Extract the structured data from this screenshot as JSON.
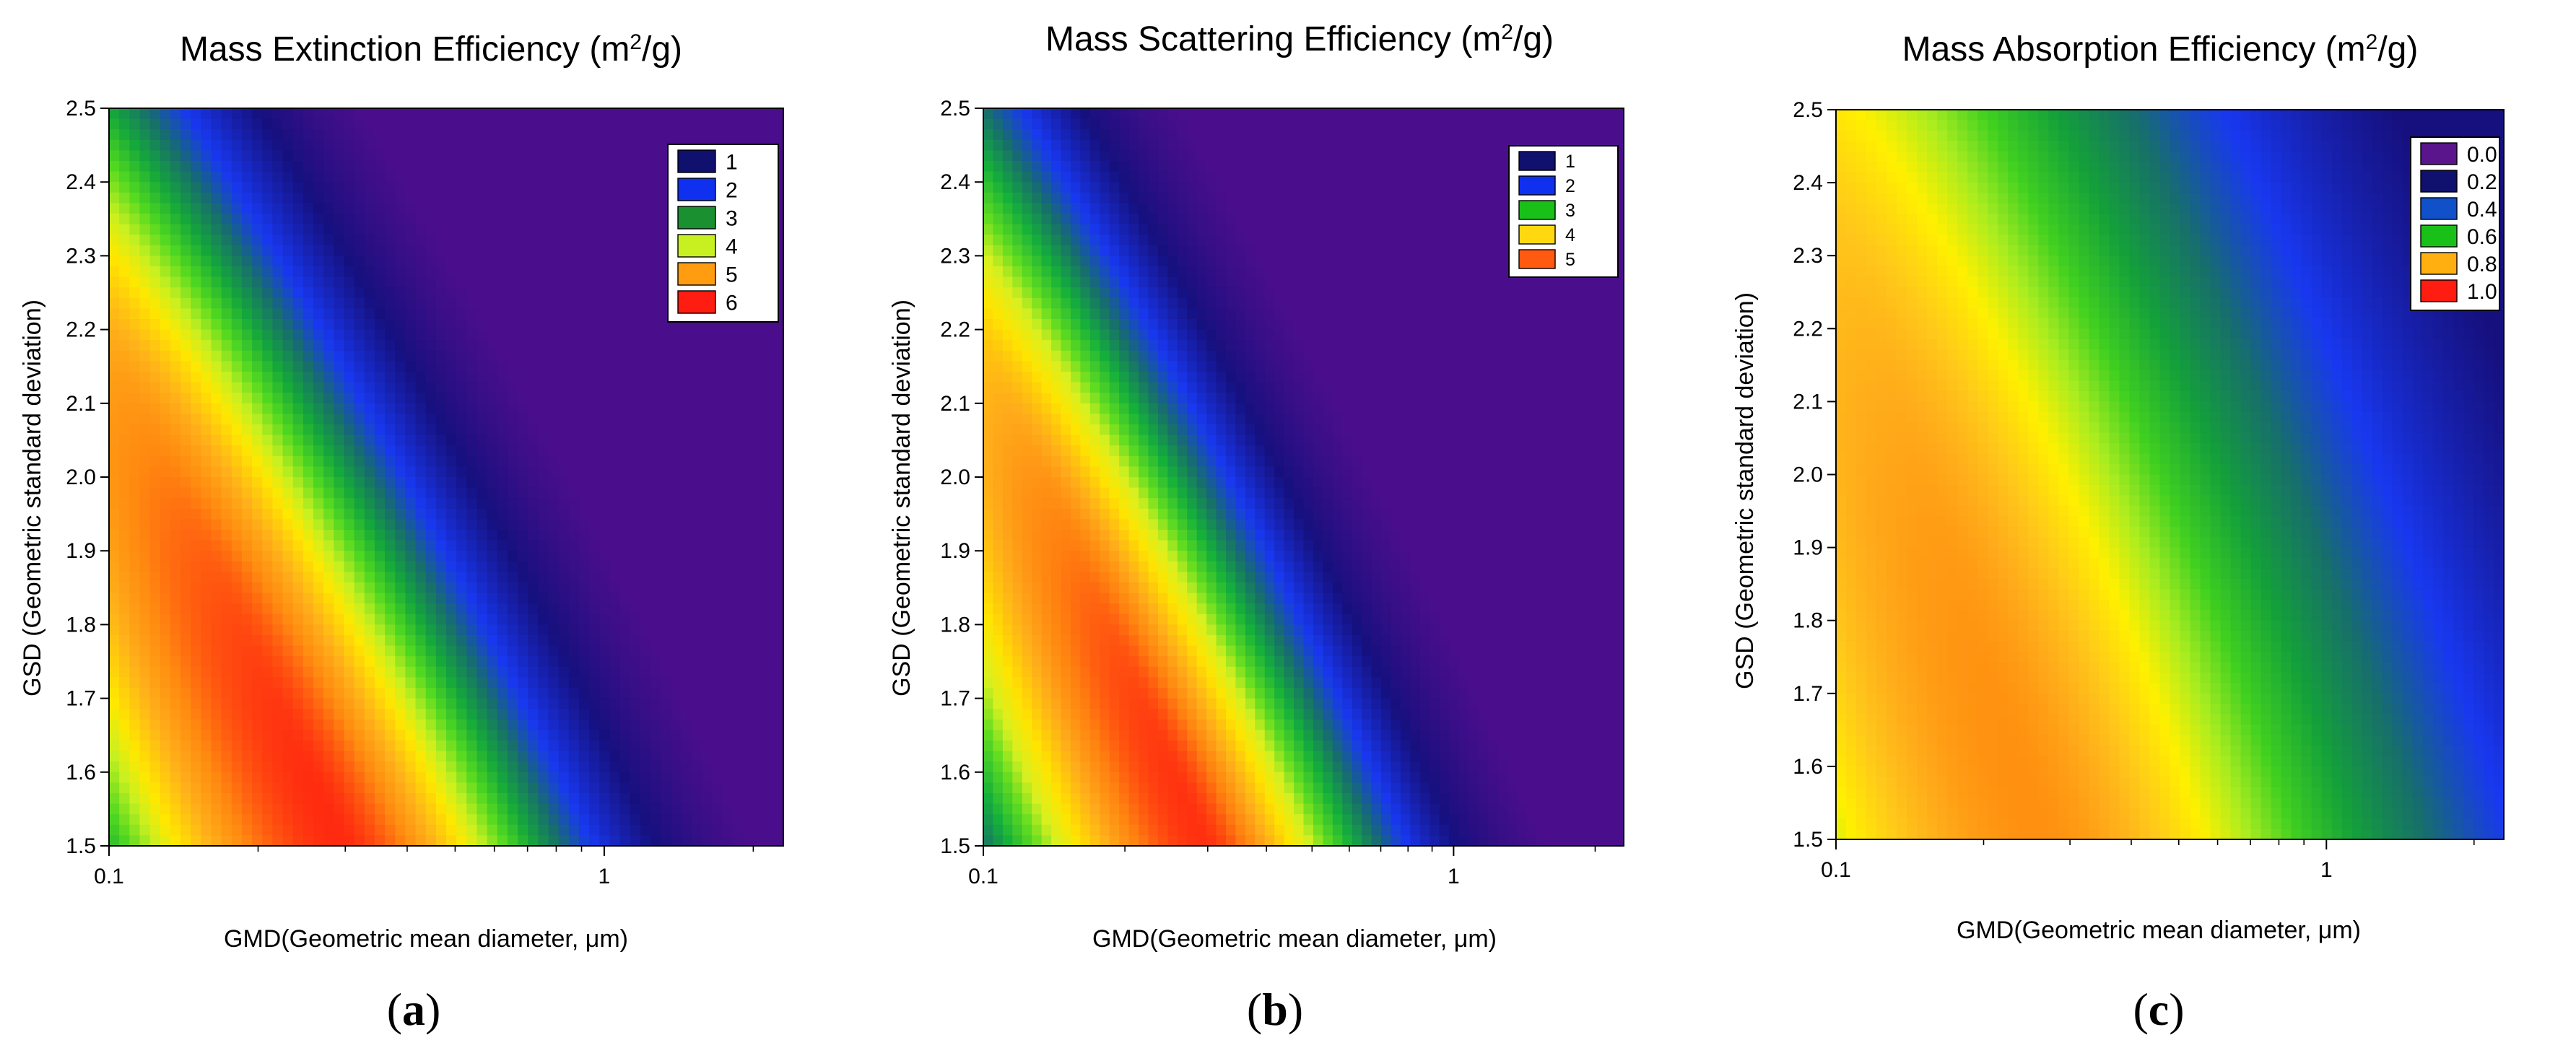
{
  "figure": {
    "panel_letters": [
      "(a)",
      "(b)",
      "(c)"
    ]
  },
  "chart_data": [
    {
      "type": "heatmap",
      "title": "Mass Extinction Efficiency (m2/g)",
      "title_main": "Mass Extinction Efficiency (m",
      "title_sup": "2",
      "title_end": "/g)",
      "xlabel": "GMD(Geometric mean diameter, μm)",
      "ylabel": "GSD (Geometric standard deviation)",
      "x_scale": "log",
      "xlim": [
        0.1,
        2.3
      ],
      "ylim": [
        1.5,
        2.5
      ],
      "x_ticks": [
        0.1,
        1
      ],
      "x_tick_labels": [
        "0.1",
        "1"
      ],
      "y_ticks": [
        1.5,
        1.6,
        1.7,
        1.8,
        1.9,
        2.0,
        2.1,
        2.2,
        2.3,
        2.4,
        2.5
      ],
      "y_tick_labels": [
        "1.5",
        "1.6",
        "1.7",
        "1.8",
        "1.9",
        "2.0",
        "2.1",
        "2.2",
        "2.3",
        "2.4",
        "2.5"
      ],
      "legend": {
        "position": "top-right",
        "entries": [
          {
            "label": "1",
            "color": "#10106e"
          },
          {
            "label": "2",
            "color": "#1030f0"
          },
          {
            "label": "3",
            "color": "#1a9030"
          },
          {
            "label": "4",
            "color": "#c8f020"
          },
          {
            "label": "5",
            "color": "#ff9c10"
          },
          {
            "label": "6",
            "color": "#ff1c10"
          }
        ]
      },
      "value_range": [
        0.5,
        6.2
      ],
      "colormap": [
        {
          "v": 0.5,
          "color": "#4a0e8c"
        },
        {
          "v": 1.2,
          "color": "#16107e"
        },
        {
          "v": 2.0,
          "color": "#1838f0"
        },
        {
          "v": 2.5,
          "color": "#176f6a"
        },
        {
          "v": 3.0,
          "color": "#15a83a"
        },
        {
          "v": 3.5,
          "color": "#50d820"
        },
        {
          "v": 4.0,
          "color": "#c8f020"
        },
        {
          "v": 4.4,
          "color": "#ffe800"
        },
        {
          "v": 5.0,
          "color": "#ffb01a"
        },
        {
          "v": 5.5,
          "color": "#ff8a10"
        },
        {
          "v": 6.2,
          "color": "#ff2a10"
        }
      ],
      "model": {
        "peak": 6.2,
        "peak_x": 0.3,
        "peak_y": 1.5,
        "peak_slope": -0.7,
        "sx": 0.58,
        "sy": 1.2,
        "floor": 0.5,
        "decay_right": 3.2
      }
    },
    {
      "type": "heatmap",
      "title": "Mass Scattering Efficiency (m2/g)",
      "title_main": "Mass Scattering Efficiency (m",
      "title_sup": "2",
      "title_end": "/g)",
      "xlabel": "GMD(Geometric mean diameter, μm)",
      "ylabel": "GSD (Geometric standard deviation)",
      "x_scale": "log",
      "xlim": [
        0.1,
        2.3
      ],
      "ylim": [
        1.5,
        2.5
      ],
      "x_ticks": [
        0.1,
        1
      ],
      "x_tick_labels": [
        "0.1",
        "1"
      ],
      "y_ticks": [
        1.5,
        1.6,
        1.7,
        1.8,
        1.9,
        2.0,
        2.1,
        2.2,
        2.3,
        2.4,
        2.5
      ],
      "y_tick_labels": [
        "1.5",
        "1.6",
        "1.7",
        "1.8",
        "1.9",
        "2.0",
        "2.1",
        "2.2",
        "2.3",
        "2.4",
        "2.5"
      ],
      "legend": {
        "position": "top-right",
        "entries": [
          {
            "label": "1",
            "color": "#10106e"
          },
          {
            "label": "2",
            "color": "#1030f0"
          },
          {
            "label": "3",
            "color": "#18c018"
          },
          {
            "label": "4",
            "color": "#ffd810"
          },
          {
            "label": "5",
            "color": "#ff5a10"
          }
        ]
      },
      "value_range": [
        0.4,
        5.4
      ],
      "colormap": [
        {
          "v": 0.4,
          "color": "#4a0e8c"
        },
        {
          "v": 1.1,
          "color": "#16107e"
        },
        {
          "v": 1.8,
          "color": "#1838f0"
        },
        {
          "v": 2.3,
          "color": "#176f6a"
        },
        {
          "v": 2.8,
          "color": "#15b03a"
        },
        {
          "v": 3.3,
          "color": "#60dc20"
        },
        {
          "v": 3.7,
          "color": "#d8f020"
        },
        {
          "v": 4.1,
          "color": "#ffe400"
        },
        {
          "v": 4.6,
          "color": "#ffac1a"
        },
        {
          "v": 5.0,
          "color": "#ff8010"
        },
        {
          "v": 5.4,
          "color": "#ff3010"
        }
      ],
      "model": {
        "peak": 5.4,
        "peak_x": 0.3,
        "peak_y": 1.5,
        "peak_slope": -0.7,
        "sx": 0.52,
        "sy": 1.15,
        "floor": 0.4,
        "decay_right": 3.4
      }
    },
    {
      "type": "heatmap",
      "title": "Mass Absorption Efficiency (m2/g)",
      "title_main": "Mass Absorption Efficiency (m",
      "title_sup": "2",
      "title_end": "/g)",
      "xlabel": "GMD(Geometric mean diameter, μm)",
      "ylabel": "GSD (Geometric standard deviation)",
      "x_scale": "log",
      "xlim": [
        0.1,
        2.3
      ],
      "ylim": [
        1.5,
        2.5
      ],
      "x_ticks": [
        0.1,
        1
      ],
      "x_tick_labels": [
        "0.1",
        "1"
      ],
      "y_ticks": [
        1.5,
        1.6,
        1.7,
        1.8,
        1.9,
        2.0,
        2.1,
        2.2,
        2.3,
        2.4,
        2.5
      ],
      "y_tick_labels": [
        "1.5",
        "1.6",
        "1.7",
        "1.8",
        "1.9",
        "2.0",
        "2.1",
        "2.2",
        "2.3",
        "2.4",
        "2.5"
      ],
      "legend": {
        "position": "top-right",
        "entries": [
          {
            "label": "0.0",
            "color": "#5a148c"
          },
          {
            "label": "0.2",
            "color": "#10106e"
          },
          {
            "label": "0.4",
            "color": "#1050c8"
          },
          {
            "label": "0.6",
            "color": "#18c018"
          },
          {
            "label": "0.8",
            "color": "#ffb010"
          },
          {
            "label": "1.0",
            "color": "#ff1c10"
          }
        ]
      },
      "value_range": [
        0.08,
        0.86
      ],
      "colormap": [
        {
          "v": 0.08,
          "color": "#16107e"
        },
        {
          "v": 0.2,
          "color": "#1838f0"
        },
        {
          "v": 0.3,
          "color": "#176f6a"
        },
        {
          "v": 0.4,
          "color": "#14a03a"
        },
        {
          "v": 0.5,
          "color": "#40d020"
        },
        {
          "v": 0.58,
          "color": "#a8ec20"
        },
        {
          "v": 0.66,
          "color": "#fff000"
        },
        {
          "v": 0.74,
          "color": "#ffc81a"
        },
        {
          "v": 0.8,
          "color": "#ffac1a"
        },
        {
          "v": 0.86,
          "color": "#ff9010"
        }
      ],
      "model": {
        "peak": 0.86,
        "peak_x": 0.25,
        "peak_y": 1.55,
        "peak_slope": -0.5,
        "sx": 0.75,
        "sy": 1.6,
        "floor": 0.08,
        "decay_right": 2.2
      }
    }
  ]
}
